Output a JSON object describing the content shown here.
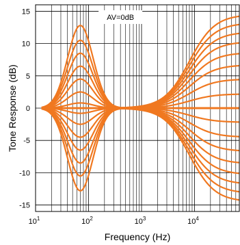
{
  "chart_data": {
    "type": "line",
    "title": "",
    "xlabel": "Frequency  (Hz)",
    "ylabel": "Tone Response  (dB)",
    "xscale": "log",
    "xlim": [
      10,
      70000
    ],
    "ylim": [
      -16,
      16
    ],
    "yticks": [
      -15,
      -10,
      -5,
      0,
      5,
      10,
      15
    ],
    "xticks": [
      {
        "base": "10",
        "exp": "1",
        "value": 10
      },
      {
        "base": "10",
        "exp": "2",
        "value": 100
      },
      {
        "base": "10",
        "exp": "3",
        "value": 1000
      },
      {
        "base": "10",
        "exp": "4",
        "value": 10000
      }
    ],
    "grid": true,
    "annotation": "AV=0dB",
    "color": "#f07820",
    "bass_gains_db": [
      -12.8,
      -10.5,
      -8.5,
      -6.5,
      -4.5,
      -2.5,
      -0.8,
      0,
      0.8,
      2.5,
      4.5,
      6.5,
      8.5,
      10.5,
      12.8
    ],
    "bass_peak_hz": 70,
    "treble_gains_db": [
      -14.5,
      -13.2,
      -11.8,
      -10.3,
      -8.6,
      -6.7,
      -4.5,
      -2.2,
      0,
      2.2,
      4.5,
      6.7,
      8.6,
      10.3,
      11.8,
      13.2,
      14.5
    ],
    "treble_shelf_hz": 8000,
    "x_range_hz": [
      13,
      70000
    ]
  }
}
